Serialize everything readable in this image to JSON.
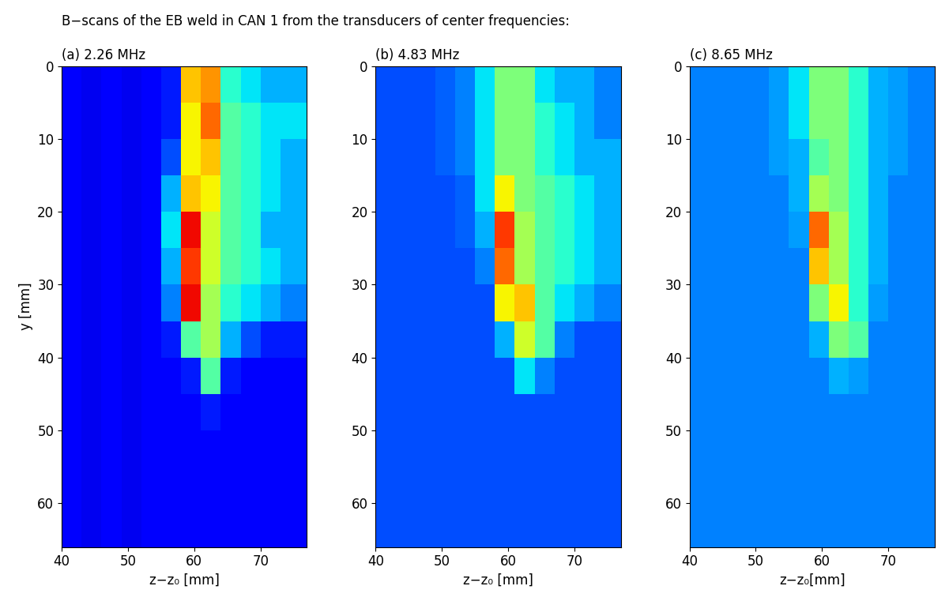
{
  "title": "B−scans of the EB weld in CAN 1 from the transducers of center frequencies:",
  "chart_data": [
    {
      "type": "heatmap",
      "title": "(a) 2.26 MHz",
      "xlabel": "z−z₀ [mm]",
      "ylabel": "y [mm]",
      "xlim": [
        40,
        77
      ],
      "ylim": [
        66,
        0
      ],
      "xticks": [
        40,
        50,
        60,
        70
      ],
      "yticks": [
        0,
        10,
        20,
        30,
        40,
        50,
        60
      ],
      "x_edges": [
        40,
        43,
        46,
        49,
        52,
        55,
        58,
        61,
        64,
        67,
        70,
        73,
        77
      ],
      "y_edges": [
        0,
        5,
        10,
        15,
        20,
        25,
        30,
        35,
        40,
        45,
        50,
        55,
        60,
        66
      ],
      "clim": [
        0,
        1
      ],
      "cells": [
        [
          0.12,
          0.1,
          0.12,
          0.1,
          0.12,
          0.15,
          0.7,
          0.75,
          0.4,
          0.35,
          0.3,
          0.3
        ],
        [
          0.12,
          0.1,
          0.12,
          0.1,
          0.12,
          0.15,
          0.65,
          0.8,
          0.45,
          0.4,
          0.35,
          0.35
        ],
        [
          0.12,
          0.1,
          0.12,
          0.1,
          0.12,
          0.2,
          0.65,
          0.7,
          0.45,
          0.4,
          0.35,
          0.3
        ],
        [
          0.12,
          0.1,
          0.12,
          0.1,
          0.12,
          0.3,
          0.7,
          0.65,
          0.45,
          0.4,
          0.35,
          0.3
        ],
        [
          0.12,
          0.1,
          0.12,
          0.1,
          0.12,
          0.35,
          0.9,
          0.6,
          0.45,
          0.4,
          0.3,
          0.3
        ],
        [
          0.12,
          0.1,
          0.12,
          0.1,
          0.12,
          0.3,
          0.85,
          0.6,
          0.45,
          0.4,
          0.35,
          0.3
        ],
        [
          0.12,
          0.1,
          0.12,
          0.1,
          0.12,
          0.25,
          0.9,
          0.55,
          0.4,
          0.35,
          0.3,
          0.25
        ],
        [
          0.12,
          0.1,
          0.12,
          0.1,
          0.12,
          0.15,
          0.45,
          0.55,
          0.3,
          0.2,
          0.15,
          0.15
        ],
        [
          0.12,
          0.1,
          0.12,
          0.1,
          0.12,
          0.12,
          0.15,
          0.45,
          0.15,
          0.12,
          0.12,
          0.12
        ],
        [
          0.12,
          0.1,
          0.12,
          0.1,
          0.12,
          0.12,
          0.12,
          0.15,
          0.12,
          0.12,
          0.12,
          0.12
        ],
        [
          0.12,
          0.1,
          0.12,
          0.1,
          0.12,
          0.12,
          0.12,
          0.12,
          0.12,
          0.12,
          0.12,
          0.12
        ],
        [
          0.12,
          0.1,
          0.12,
          0.1,
          0.12,
          0.12,
          0.12,
          0.12,
          0.12,
          0.12,
          0.12,
          0.12
        ],
        [
          0.12,
          0.1,
          0.12,
          0.1,
          0.12,
          0.12,
          0.12,
          0.12,
          0.12,
          0.12,
          0.12,
          0.12
        ]
      ]
    },
    {
      "type": "heatmap",
      "title": "(b) 4.83 MHz",
      "xlabel": "z−z₀ [mm]",
      "xlim": [
        40,
        77
      ],
      "ylim": [
        66,
        0
      ],
      "xticks": [
        40,
        50,
        60,
        70
      ],
      "yticks": [
        0,
        10,
        20,
        30,
        40,
        50,
        60
      ],
      "x_edges": [
        40,
        43,
        46,
        49,
        52,
        55,
        58,
        61,
        64,
        67,
        70,
        73,
        77
      ],
      "y_edges": [
        0,
        5,
        10,
        15,
        20,
        25,
        30,
        35,
        40,
        45,
        50,
        55,
        60,
        66
      ],
      "clim": [
        0,
        1
      ],
      "cells": [
        [
          0.2,
          0.2,
          0.2,
          0.22,
          0.25,
          0.35,
          0.5,
          0.5,
          0.35,
          0.3,
          0.3,
          0.25
        ],
        [
          0.2,
          0.2,
          0.2,
          0.22,
          0.25,
          0.35,
          0.5,
          0.5,
          0.4,
          0.35,
          0.3,
          0.25
        ],
        [
          0.2,
          0.2,
          0.2,
          0.22,
          0.25,
          0.35,
          0.5,
          0.5,
          0.4,
          0.35,
          0.3,
          0.3
        ],
        [
          0.2,
          0.2,
          0.2,
          0.2,
          0.22,
          0.35,
          0.65,
          0.5,
          0.45,
          0.4,
          0.35,
          0.3
        ],
        [
          0.2,
          0.2,
          0.2,
          0.2,
          0.22,
          0.3,
          0.85,
          0.55,
          0.45,
          0.4,
          0.35,
          0.3
        ],
        [
          0.2,
          0.2,
          0.2,
          0.2,
          0.2,
          0.25,
          0.8,
          0.55,
          0.45,
          0.4,
          0.35,
          0.3
        ],
        [
          0.2,
          0.2,
          0.2,
          0.2,
          0.2,
          0.2,
          0.65,
          0.7,
          0.45,
          0.35,
          0.3,
          0.25
        ],
        [
          0.2,
          0.2,
          0.2,
          0.2,
          0.2,
          0.2,
          0.3,
          0.6,
          0.45,
          0.25,
          0.2,
          0.2
        ],
        [
          0.2,
          0.2,
          0.2,
          0.2,
          0.2,
          0.2,
          0.2,
          0.35,
          0.25,
          0.2,
          0.2,
          0.2
        ],
        [
          0.2,
          0.2,
          0.2,
          0.2,
          0.2,
          0.2,
          0.2,
          0.2,
          0.2,
          0.2,
          0.2,
          0.2
        ],
        [
          0.2,
          0.2,
          0.2,
          0.2,
          0.2,
          0.2,
          0.2,
          0.2,
          0.2,
          0.2,
          0.2,
          0.2
        ],
        [
          0.2,
          0.2,
          0.2,
          0.2,
          0.2,
          0.2,
          0.2,
          0.2,
          0.2,
          0.2,
          0.2,
          0.2
        ],
        [
          0.2,
          0.2,
          0.2,
          0.2,
          0.2,
          0.2,
          0.2,
          0.2,
          0.2,
          0.2,
          0.2,
          0.2
        ]
      ]
    },
    {
      "type": "heatmap",
      "title": "(c) 8.65 MHz",
      "xlabel": "z−z₀[mm]",
      "xlim": [
        40,
        77
      ],
      "ylim": [
        66,
        0
      ],
      "xticks": [
        40,
        50,
        60,
        70
      ],
      "yticks": [
        0,
        10,
        20,
        30,
        40,
        50,
        60
      ],
      "x_edges": [
        40,
        43,
        46,
        49,
        52,
        55,
        58,
        61,
        64,
        67,
        70,
        73,
        77
      ],
      "y_edges": [
        0,
        5,
        10,
        15,
        20,
        25,
        30,
        35,
        40,
        45,
        50,
        55,
        60,
        66
      ],
      "clim": [
        0,
        1
      ],
      "cells": [
        [
          0.25,
          0.25,
          0.25,
          0.25,
          0.28,
          0.35,
          0.5,
          0.5,
          0.4,
          0.3,
          0.28,
          0.25
        ],
        [
          0.25,
          0.25,
          0.25,
          0.25,
          0.28,
          0.35,
          0.5,
          0.5,
          0.4,
          0.3,
          0.28,
          0.25
        ],
        [
          0.25,
          0.25,
          0.25,
          0.25,
          0.28,
          0.3,
          0.45,
          0.5,
          0.4,
          0.3,
          0.28,
          0.25
        ],
        [
          0.25,
          0.25,
          0.25,
          0.25,
          0.25,
          0.3,
          0.55,
          0.5,
          0.4,
          0.3,
          0.25,
          0.25
        ],
        [
          0.25,
          0.25,
          0.25,
          0.25,
          0.25,
          0.28,
          0.8,
          0.55,
          0.4,
          0.3,
          0.25,
          0.25
        ],
        [
          0.25,
          0.25,
          0.25,
          0.25,
          0.25,
          0.25,
          0.7,
          0.55,
          0.4,
          0.3,
          0.25,
          0.25
        ],
        [
          0.25,
          0.25,
          0.25,
          0.25,
          0.25,
          0.25,
          0.5,
          0.65,
          0.4,
          0.28,
          0.25,
          0.25
        ],
        [
          0.25,
          0.25,
          0.25,
          0.25,
          0.25,
          0.25,
          0.3,
          0.5,
          0.45,
          0.25,
          0.25,
          0.25
        ],
        [
          0.25,
          0.25,
          0.25,
          0.25,
          0.25,
          0.25,
          0.25,
          0.3,
          0.28,
          0.25,
          0.25,
          0.25
        ],
        [
          0.25,
          0.25,
          0.25,
          0.25,
          0.25,
          0.25,
          0.25,
          0.25,
          0.25,
          0.25,
          0.25,
          0.25
        ],
        [
          0.25,
          0.25,
          0.25,
          0.25,
          0.25,
          0.25,
          0.25,
          0.25,
          0.25,
          0.25,
          0.25,
          0.25
        ],
        [
          0.25,
          0.25,
          0.25,
          0.25,
          0.25,
          0.25,
          0.25,
          0.25,
          0.25,
          0.25,
          0.25,
          0.25
        ],
        [
          0.25,
          0.25,
          0.25,
          0.25,
          0.25,
          0.25,
          0.25,
          0.25,
          0.25,
          0.25,
          0.25,
          0.25
        ]
      ]
    }
  ]
}
